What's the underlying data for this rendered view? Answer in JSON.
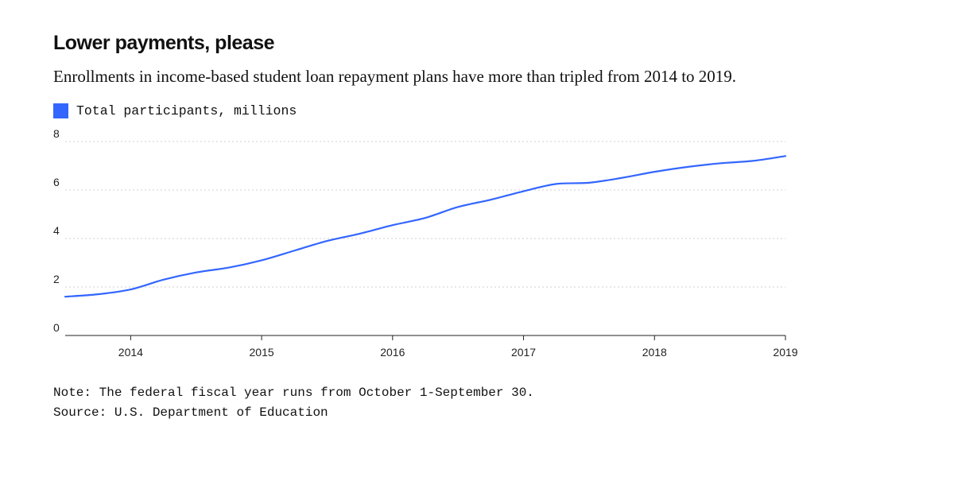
{
  "chart_data": {
    "type": "line",
    "title": "Lower payments, please",
    "subtitle": "Enrollments in income-based student loan repayment plans have more than tripled from 2014 to 2019.",
    "xlabel": "",
    "ylabel": "",
    "x_range": [
      2013.5,
      2019
    ],
    "ylim": [
      0,
      8
    ],
    "x_ticks": [
      2014,
      2015,
      2016,
      2017,
      2018,
      2019
    ],
    "y_ticks": [
      0,
      2,
      4,
      6,
      8
    ],
    "grid": true,
    "legend": "top-left",
    "series": [
      {
        "name": "Total participants, millions",
        "color": "#3366ff",
        "points": [
          [
            2013.5,
            1.6
          ],
          [
            2013.75,
            1.7
          ],
          [
            2014.0,
            1.9
          ],
          [
            2014.25,
            2.3
          ],
          [
            2014.5,
            2.6
          ],
          [
            2014.75,
            2.8
          ],
          [
            2015.0,
            3.1
          ],
          [
            2015.25,
            3.5
          ],
          [
            2015.5,
            3.9
          ],
          [
            2015.75,
            4.2
          ],
          [
            2016.0,
            4.55
          ],
          [
            2016.25,
            4.85
          ],
          [
            2016.5,
            5.3
          ],
          [
            2016.75,
            5.6
          ],
          [
            2017.0,
            5.95
          ],
          [
            2017.25,
            6.25
          ],
          [
            2017.5,
            6.3
          ],
          [
            2017.75,
            6.5
          ],
          [
            2018.0,
            6.75
          ],
          [
            2018.25,
            6.95
          ],
          [
            2018.5,
            7.1
          ],
          [
            2018.75,
            7.2
          ],
          [
            2019.0,
            7.4
          ]
        ]
      }
    ]
  },
  "note": "Note: The federal fiscal year runs from October 1-September 30.",
  "source": "Source: U.S. Department of Education"
}
